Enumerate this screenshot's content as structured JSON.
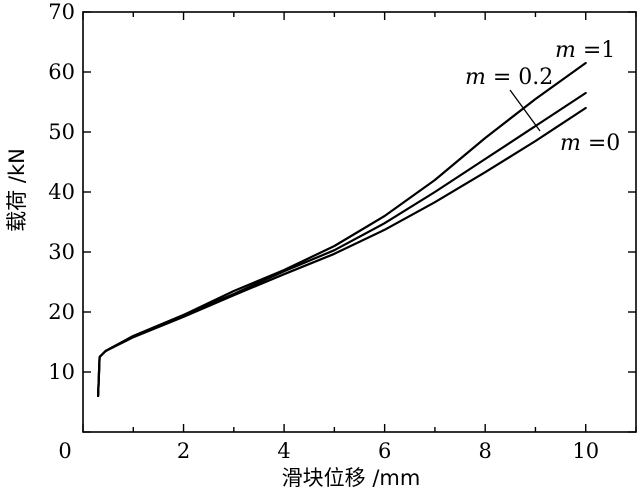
{
  "chart_data": {
    "type": "line",
    "title": "",
    "xlabel": "滑块位移 /mm",
    "ylabel": "载荷 /kN",
    "xlim": [
      0,
      11
    ],
    "ylim": [
      0,
      70
    ],
    "xticks": [
      0,
      2,
      4,
      6,
      8,
      10
    ],
    "yticks": [
      0,
      10,
      20,
      30,
      40,
      50,
      60,
      70
    ],
    "grid": false,
    "series": [
      {
        "name": "m =1",
        "points": [
          [
            0.3,
            6
          ],
          [
            0.33,
            12.5
          ],
          [
            0.45,
            13.5
          ],
          [
            1,
            16
          ],
          [
            2,
            19.5
          ],
          [
            3,
            23.5
          ],
          [
            4,
            27
          ],
          [
            5,
            31
          ],
          [
            6,
            36
          ],
          [
            7,
            42
          ],
          [
            8,
            49
          ],
          [
            9,
            55.5
          ],
          [
            10,
            61.5
          ]
        ]
      },
      {
        "name": "m = 0.2",
        "points": [
          [
            0.3,
            6
          ],
          [
            0.33,
            12.5
          ],
          [
            0.45,
            13.5
          ],
          [
            1,
            16
          ],
          [
            2,
            19.5
          ],
          [
            3,
            23
          ],
          [
            4,
            26.8
          ],
          [
            5,
            30.3
          ],
          [
            6,
            34.8
          ],
          [
            7,
            40
          ],
          [
            8,
            45.5
          ],
          [
            9,
            51
          ],
          [
            10,
            56.5
          ]
        ]
      },
      {
        "name": "m =0",
        "points": [
          [
            0.3,
            6
          ],
          [
            0.33,
            12.5
          ],
          [
            0.45,
            13.5
          ],
          [
            1,
            15.8
          ],
          [
            2,
            19.2
          ],
          [
            3,
            22.8
          ],
          [
            4,
            26.3
          ],
          [
            5,
            29.7
          ],
          [
            6,
            33.7
          ],
          [
            7,
            38.3
          ],
          [
            8,
            43.3
          ],
          [
            9,
            48.5
          ],
          [
            10,
            54
          ]
        ]
      }
    ]
  },
  "annotations": [
    {
      "italic": "m",
      "rest": " =1"
    },
    {
      "italic": "m",
      "rest": " = 0.2"
    },
    {
      "italic": "m",
      "rest": " =0"
    }
  ]
}
